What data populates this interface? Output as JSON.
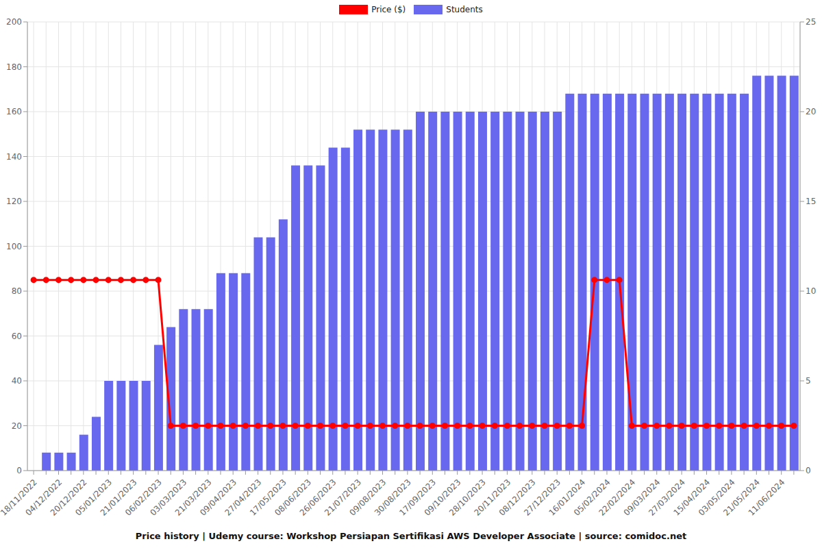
{
  "chart_data": {
    "type": "bar",
    "title": "Price history | Udemy course: Workshop Persiapan Sertifikasi AWS Developer Associate | source: comidoc.net",
    "categories": [
      "18/11/2022",
      null,
      "04/12/2022",
      null,
      "20/12/2022",
      null,
      "05/01/2023",
      null,
      "21/01/2023",
      null,
      "06/02/2023",
      null,
      "03/03/2023",
      null,
      "21/03/2023",
      null,
      "09/04/2023",
      null,
      "27/04/2023",
      null,
      "17/05/2023",
      null,
      "08/06/2023",
      null,
      "26/06/2023",
      null,
      "21/07/2023",
      null,
      "09/08/2023",
      null,
      "30/08/2023",
      null,
      "17/09/2023",
      null,
      "09/10/2023",
      null,
      "28/10/2023",
      null,
      "20/11/2023",
      null,
      "08/12/2023",
      null,
      "27/12/2023",
      null,
      "16/01/2024",
      null,
      "05/02/2024",
      null,
      "22/02/2024",
      null,
      "09/03/2024",
      null,
      "27/03/2024",
      null,
      "15/04/2024",
      null,
      "03/05/2024",
      null,
      "21/05/2024",
      null,
      "11/06/2024",
      null
    ],
    "series": [
      {
        "name": "Price ($)",
        "type": "line",
        "color": "#ff0000",
        "marker": "circle",
        "values": [
          85,
          85,
          85,
          85,
          85,
          85,
          85,
          85,
          85,
          85,
          85,
          20,
          20,
          20,
          20,
          20,
          20,
          20,
          20,
          20,
          20,
          20,
          20,
          20,
          20,
          20,
          20,
          20,
          20,
          20,
          20,
          20,
          20,
          20,
          20,
          20,
          20,
          20,
          20,
          20,
          20,
          20,
          20,
          20,
          20,
          85,
          85,
          85,
          20,
          20,
          20,
          20,
          20,
          20,
          20,
          20,
          20,
          20,
          20,
          20,
          20,
          20
        ]
      },
      {
        "name": "Students",
        "type": "bar",
        "axis": "y2",
        "color": "#6868ef",
        "values": [
          0,
          1,
          1,
          1,
          2,
          3,
          5,
          5,
          5,
          5,
          7,
          8,
          9,
          9,
          9,
          11,
          11,
          11,
          13,
          13,
          14,
          17,
          17,
          17,
          18,
          18,
          19,
          19,
          19,
          19,
          19,
          20,
          20,
          20,
          20,
          20,
          20,
          20,
          20,
          20,
          20,
          20,
          20,
          21,
          21,
          21,
          21,
          21,
          21,
          21,
          21,
          21,
          21,
          21,
          21,
          21,
          21,
          21,
          22,
          22,
          22,
          22
        ]
      }
    ],
    "ylim": [
      0,
      200
    ],
    "yticks": [
      0,
      20,
      40,
      60,
      80,
      100,
      120,
      140,
      160,
      180,
      200
    ],
    "y2lim": [
      0,
      25
    ],
    "y2ticks": [
      0,
      5,
      10,
      15,
      20,
      25
    ],
    "grid": true,
    "legend": "top"
  }
}
